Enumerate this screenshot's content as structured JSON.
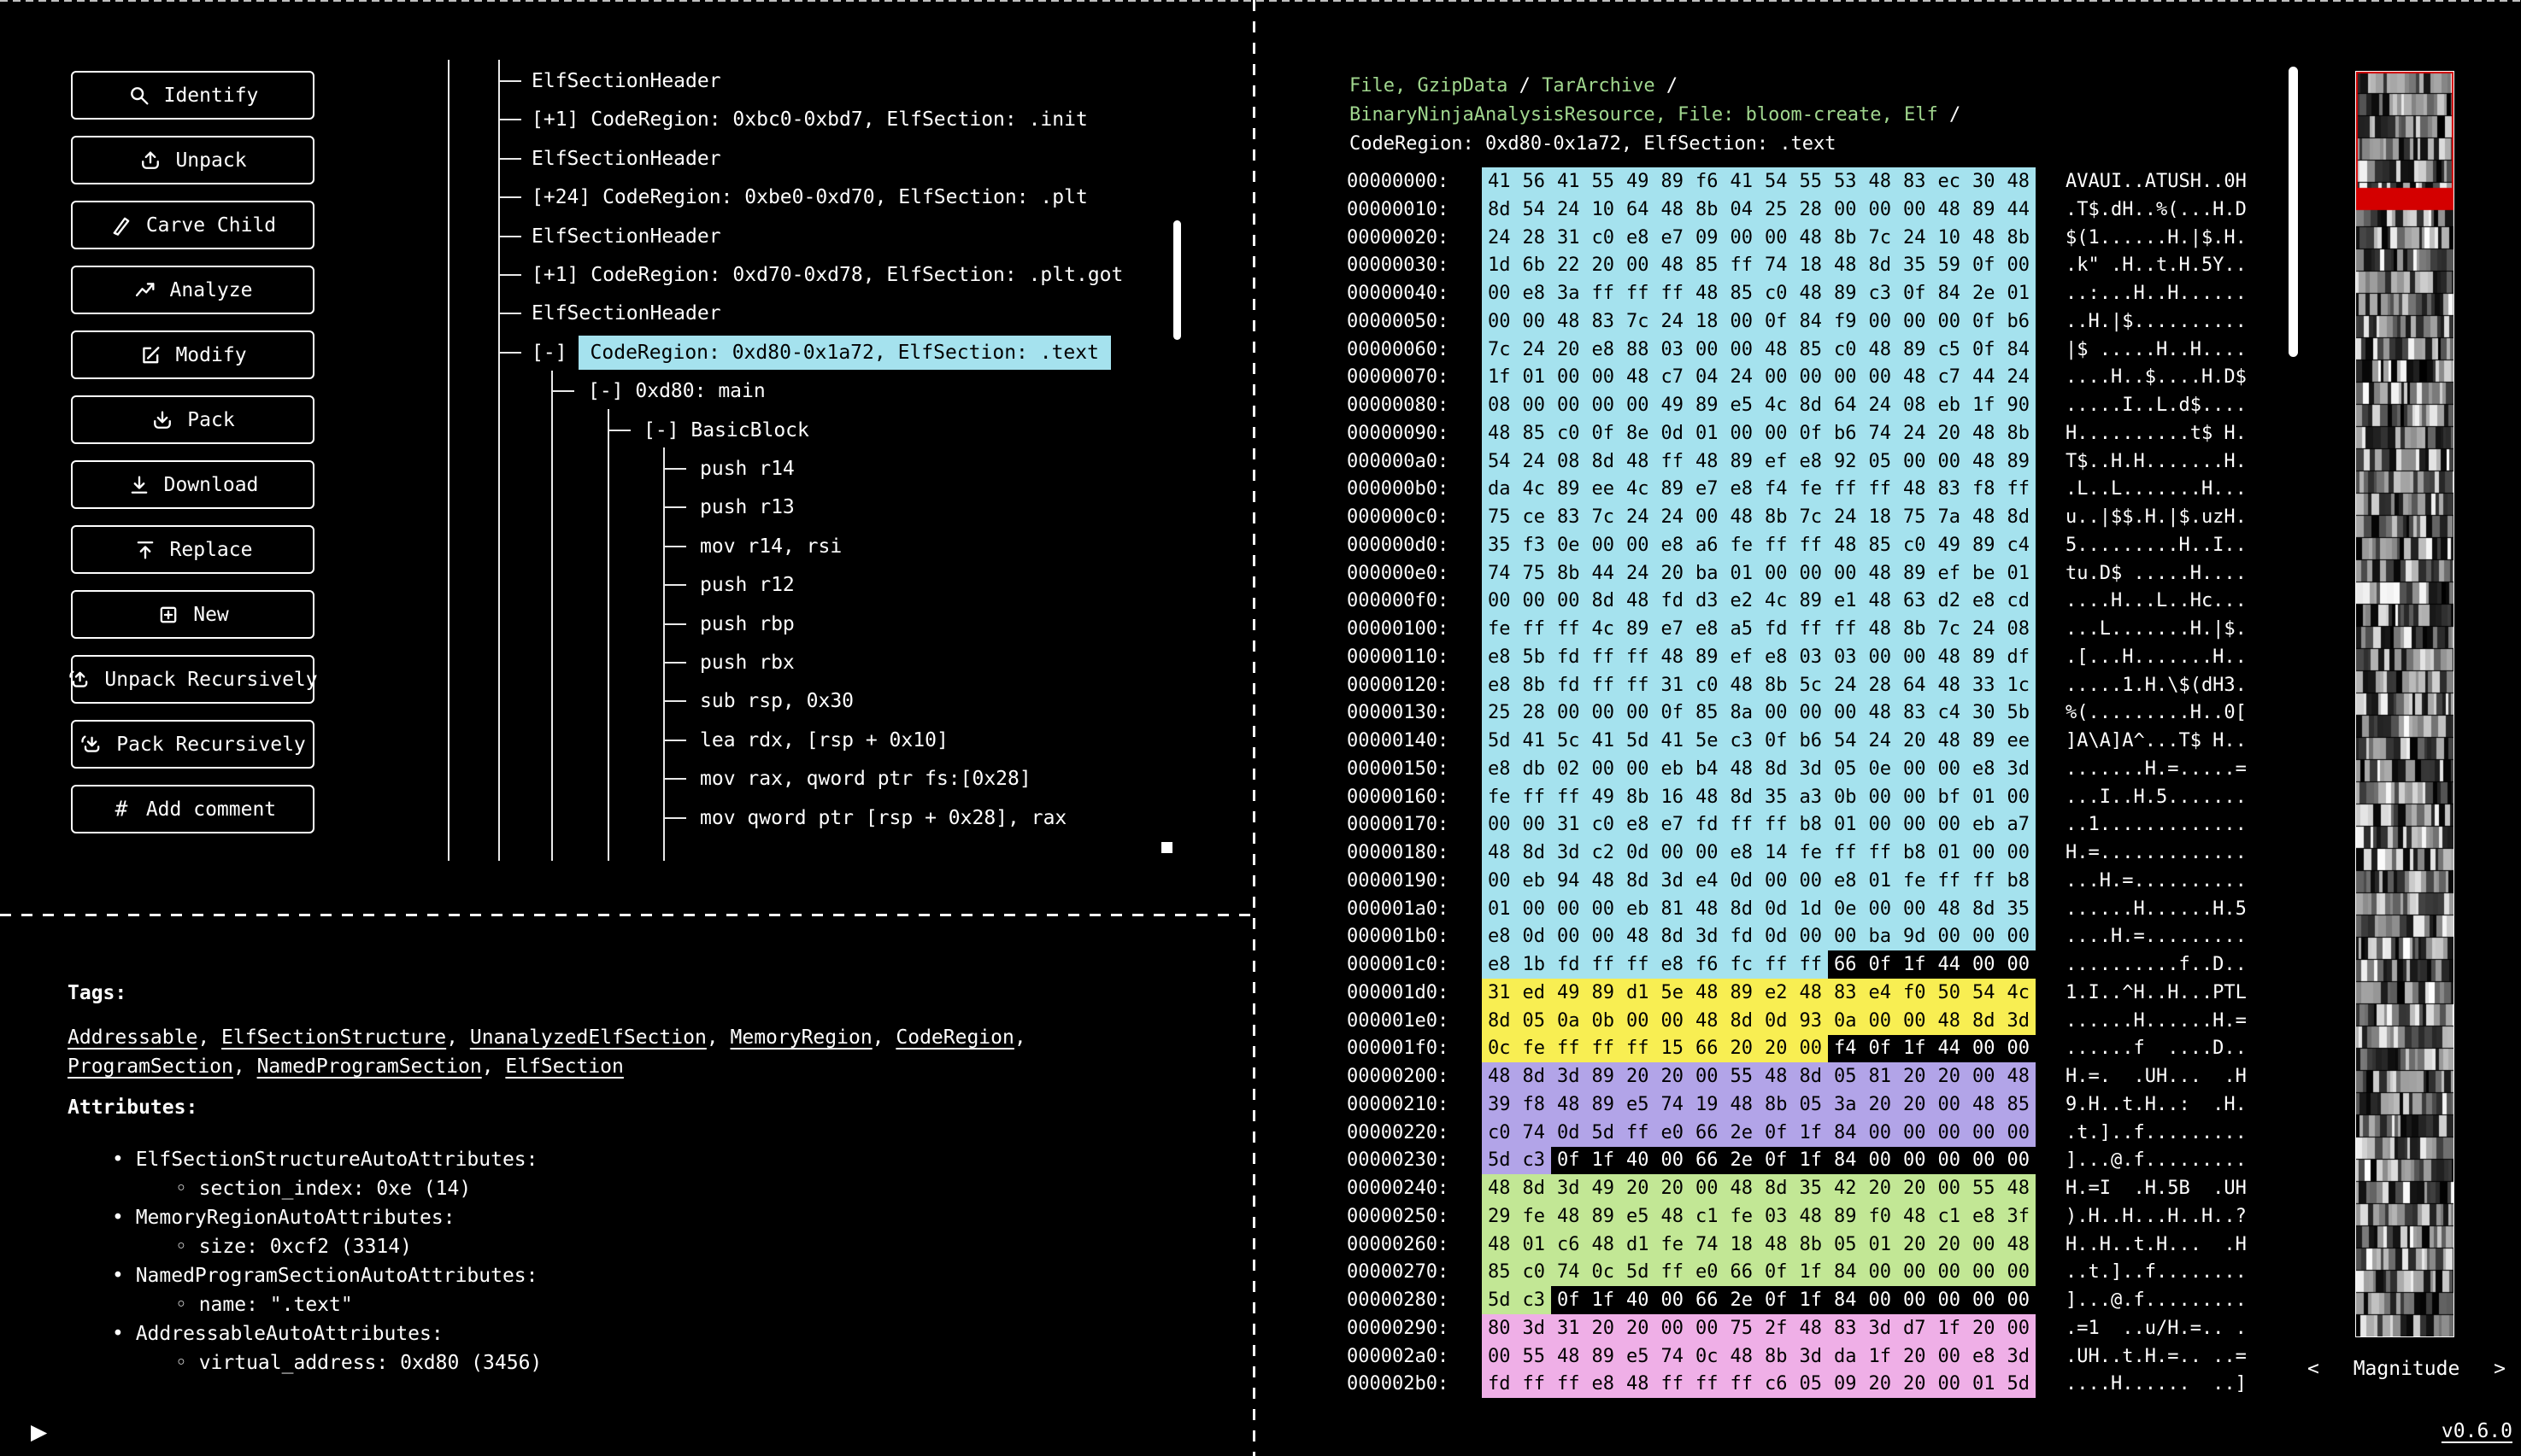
{
  "app": {
    "version_label": "v0.6.0",
    "play_glyph": "▶"
  },
  "colors": {
    "selection": "#a5e2ee",
    "hex_cyan": "#a5e2ee",
    "hex_yellow": "#f8ee52",
    "hex_purple": "#b2a4e8",
    "hex_green": "#c2e795",
    "hex_pink": "#efafe7",
    "minimap_red": "#d40000",
    "breadcrumb_green": "#a0d68e"
  },
  "toolbar": {
    "buttons": [
      {
        "id": "identify",
        "label": "Identify",
        "icon": "magnifier-icon"
      },
      {
        "id": "unpack",
        "label": "Unpack",
        "icon": "unpack-icon"
      },
      {
        "id": "carve-child",
        "label": "Carve Child",
        "icon": "carve-knife-icon"
      },
      {
        "id": "analyze",
        "label": "Analyze",
        "icon": "trend-arrow-icon"
      },
      {
        "id": "modify",
        "label": "Modify",
        "icon": "pen-square-icon"
      },
      {
        "id": "pack",
        "label": "Pack",
        "icon": "pack-icon"
      },
      {
        "id": "download",
        "label": "Download",
        "icon": "download-icon"
      },
      {
        "id": "replace",
        "label": "Replace",
        "icon": "replace-icon"
      },
      {
        "id": "new",
        "label": "New",
        "icon": "file-plus-icon"
      },
      {
        "id": "unpack-recursively",
        "label": "Unpack Recursively",
        "icon": "unpack-recursive-icon"
      },
      {
        "id": "pack-recursively",
        "label": "Pack Recursively",
        "icon": "pack-recursive-icon"
      },
      {
        "id": "add-comment",
        "label": "Add comment",
        "icon": "hash-icon"
      }
    ]
  },
  "tree": {
    "rows": [
      {
        "level": 0,
        "text": "ElfSectionHeader"
      },
      {
        "level": 0,
        "text": "[+1] CodeRegion: 0xbc0-0xbd7, ElfSection: .init"
      },
      {
        "level": 0,
        "text": "ElfSectionHeader"
      },
      {
        "level": 0,
        "text": "[+24] CodeRegion: 0xbe0-0xd70, ElfSection: .plt"
      },
      {
        "level": 0,
        "text": "ElfSectionHeader"
      },
      {
        "level": 0,
        "text": "[+1] CodeRegion: 0xd70-0xd78, ElfSection: .plt.got"
      },
      {
        "level": 0,
        "text": "ElfSectionHeader"
      },
      {
        "level": 0,
        "prefix": "[-]",
        "text": "CodeRegion: 0xd80-0x1a72, ElfSection: .text",
        "selected": true
      },
      {
        "level": 1,
        "text": "[-] 0xd80: main"
      },
      {
        "level": 2,
        "text": "[-] BasicBlock"
      },
      {
        "level": 3,
        "text": "push r14"
      },
      {
        "level": 3,
        "text": "push r13"
      },
      {
        "level": 3,
        "text": "mov r14, rsi"
      },
      {
        "level": 3,
        "text": "push r12"
      },
      {
        "level": 3,
        "text": "push rbp"
      },
      {
        "level": 3,
        "text": "push rbx"
      },
      {
        "level": 3,
        "text": "sub rsp, 0x30"
      },
      {
        "level": 3,
        "text": "lea rdx, [rsp + 0x10]"
      },
      {
        "level": 3,
        "text": "mov rax, qword ptr fs:[0x28]"
      },
      {
        "level": 3,
        "text": "mov qword ptr [rsp + 0x28], rax"
      }
    ]
  },
  "breadcrumb": {
    "lines": [
      [
        {
          "t": "File, GzipData",
          "c": "green"
        },
        {
          "t": " / ",
          "c": "white"
        },
        {
          "t": "TarArchive",
          "c": "green"
        },
        {
          "t": " /",
          "c": "white"
        }
      ],
      [
        {
          "t": "BinaryNinjaAnalysisResource, File: bloom-create, Elf",
          "c": "green"
        },
        {
          "t": " /",
          "c": "white"
        }
      ],
      [
        {
          "t": "CodeRegion: 0xd80-0x1a72, ElfSection: .text",
          "c": "white"
        }
      ]
    ]
  },
  "hexdump": {
    "rows": [
      {
        "a": "00000000:",
        "b": "41 56 41 55 49 89 f6 41 54 55 53 48 83 ec 30 48",
        "s": [
          [
            "cyan",
            16
          ]
        ]
      },
      {
        "a": "00000010:",
        "b": "8d 54 24 10 64 48 8b 04 25 28 00 00 00 48 89 44",
        "s": [
          [
            "cyan",
            16
          ]
        ]
      },
      {
        "a": "00000020:",
        "b": "24 28 31 c0 e8 e7 09 00 00 48 8b 7c 24 10 48 8b",
        "s": [
          [
            "cyan",
            16
          ]
        ]
      },
      {
        "a": "00000030:",
        "b": "1d 6b 22 20 00 48 85 ff 74 18 48 8d 35 59 0f 00",
        "s": [
          [
            "cyan",
            16
          ]
        ]
      },
      {
        "a": "00000040:",
        "b": "00 e8 3a ff ff ff 48 85 c0 48 89 c3 0f 84 2e 01",
        "s": [
          [
            "cyan",
            16
          ]
        ]
      },
      {
        "a": "00000050:",
        "b": "00 00 48 83 7c 24 18 00 0f 84 f9 00 00 00 0f b6",
        "s": [
          [
            "cyan",
            16
          ]
        ]
      },
      {
        "a": "00000060:",
        "b": "7c 24 20 e8 88 03 00 00 48 85 c0 48 89 c5 0f 84",
        "s": [
          [
            "cyan",
            16
          ]
        ]
      },
      {
        "a": "00000070:",
        "b": "1f 01 00 00 48 c7 04 24 00 00 00 00 48 c7 44 24",
        "s": [
          [
            "cyan",
            16
          ]
        ]
      },
      {
        "a": "00000080:",
        "b": "08 00 00 00 00 49 89 e5 4c 8d 64 24 08 eb 1f 90",
        "s": [
          [
            "cyan",
            16
          ]
        ]
      },
      {
        "a": "00000090:",
        "b": "48 85 c0 0f 8e 0d 01 00 00 0f b6 74 24 20 48 8b",
        "s": [
          [
            "cyan",
            16
          ]
        ]
      },
      {
        "a": "000000a0:",
        "b": "54 24 08 8d 48 ff 48 89 ef e8 92 05 00 00 48 89",
        "s": [
          [
            "cyan",
            16
          ]
        ]
      },
      {
        "a": "000000b0:",
        "b": "da 4c 89 ee 4c 89 e7 e8 f4 fe ff ff 48 83 f8 ff",
        "s": [
          [
            "cyan",
            16
          ]
        ]
      },
      {
        "a": "000000c0:",
        "b": "75 ce 83 7c 24 24 00 48 8b 7c 24 18 75 7a 48 8d",
        "s": [
          [
            "cyan",
            16
          ]
        ]
      },
      {
        "a": "000000d0:",
        "b": "35 f3 0e 00 00 e8 a6 fe ff ff 48 85 c0 49 89 c4",
        "s": [
          [
            "cyan",
            16
          ]
        ]
      },
      {
        "a": "000000e0:",
        "b": "74 75 8b 44 24 20 ba 01 00 00 00 48 89 ef be 01",
        "s": [
          [
            "cyan",
            16
          ]
        ]
      },
      {
        "a": "000000f0:",
        "b": "00 00 00 8d 48 fd d3 e2 4c 89 e1 48 63 d2 e8 cd",
        "s": [
          [
            "cyan",
            16
          ]
        ]
      },
      {
        "a": "00000100:",
        "b": "fe ff ff 4c 89 e7 e8 a5 fd ff ff 48 8b 7c 24 08",
        "s": [
          [
            "cyan",
            16
          ]
        ]
      },
      {
        "a": "00000110:",
        "b": "e8 5b fd ff ff 48 89 ef e8 03 03 00 00 48 89 df",
        "s": [
          [
            "cyan",
            16
          ]
        ]
      },
      {
        "a": "00000120:",
        "b": "e8 8b fd ff ff 31 c0 48 8b 5c 24 28 64 48 33 1c",
        "s": [
          [
            "cyan",
            16
          ]
        ]
      },
      {
        "a": "00000130:",
        "b": "25 28 00 00 00 0f 85 8a 00 00 00 48 83 c4 30 5b",
        "s": [
          [
            "cyan",
            16
          ]
        ]
      },
      {
        "a": "00000140:",
        "b": "5d 41 5c 41 5d 41 5e c3 0f b6 54 24 20 48 89 ee",
        "s": [
          [
            "cyan",
            16
          ]
        ]
      },
      {
        "a": "00000150:",
        "b": "e8 db 02 00 00 eb b4 48 8d 3d 05 0e 00 00 e8 3d",
        "s": [
          [
            "cyan",
            16
          ]
        ]
      },
      {
        "a": "00000160:",
        "b": "fe ff ff 49 8b 16 48 8d 35 a3 0b 00 00 bf 01 00",
        "s": [
          [
            "cyan",
            16
          ]
        ]
      },
      {
        "a": "00000170:",
        "b": "00 00 31 c0 e8 e7 fd ff ff b8 01 00 00 00 eb a7",
        "s": [
          [
            "cyan",
            16
          ]
        ]
      },
      {
        "a": "00000180:",
        "b": "48 8d 3d c2 0d 00 00 e8 14 fe ff ff b8 01 00 00",
        "s": [
          [
            "cyan",
            16
          ]
        ]
      },
      {
        "a": "00000190:",
        "b": "00 eb 94 48 8d 3d e4 0d 00 00 e8 01 fe ff ff b8",
        "s": [
          [
            "cyan",
            16
          ]
        ]
      },
      {
        "a": "000001a0:",
        "b": "01 00 00 00 eb 81 48 8d 0d 1d 0e 00 00 48 8d 35",
        "s": [
          [
            "cyan",
            16
          ]
        ]
      },
      {
        "a": "000001b0:",
        "b": "e8 0d 00 00 48 8d 3d fd 0d 00 00 ba 9d 00 00 00",
        "s": [
          [
            "cyan",
            16
          ]
        ]
      },
      {
        "a": "000001c0:",
        "b": "e8 1b fd ff ff e8 f6 fc ff ff 66 0f 1f 44 00 00",
        "s": [
          [
            "cyan",
            10
          ],
          [
            "none",
            6
          ]
        ]
      },
      {
        "a": "000001d0:",
        "b": "31 ed 49 89 d1 5e 48 89 e2 48 83 e4 f0 50 54 4c",
        "s": [
          [
            "yellow",
            16
          ]
        ]
      },
      {
        "a": "000001e0:",
        "b": "8d 05 0a 0b 00 00 48 8d 0d 93 0a 00 00 48 8d 3d",
        "s": [
          [
            "yellow",
            16
          ]
        ]
      },
      {
        "a": "000001f0:",
        "b": "0c fe ff ff ff 15 66 20 20 00 f4 0f 1f 44 00 00",
        "s": [
          [
            "yellow",
            10
          ],
          [
            "none",
            6
          ]
        ]
      },
      {
        "a": "00000200:",
        "b": "48 8d 3d 89 20 20 00 55 48 8d 05 81 20 20 00 48",
        "s": [
          [
            "purple",
            16
          ]
        ]
      },
      {
        "a": "00000210:",
        "b": "39 f8 48 89 e5 74 19 48 8b 05 3a 20 20 00 48 85",
        "s": [
          [
            "purple",
            16
          ]
        ]
      },
      {
        "a": "00000220:",
        "b": "c0 74 0d 5d ff e0 66 2e 0f 1f 84 00 00 00 00 00",
        "s": [
          [
            "purple",
            16
          ]
        ]
      },
      {
        "a": "00000230:",
        "b": "5d c3 0f 1f 40 00 66 2e 0f 1f 84 00 00 00 00 00",
        "s": [
          [
            "purple",
            2
          ],
          [
            "none",
            14
          ]
        ]
      },
      {
        "a": "00000240:",
        "b": "48 8d 3d 49 20 20 00 48 8d 35 42 20 20 00 55 48",
        "s": [
          [
            "green",
            16
          ]
        ]
      },
      {
        "a": "00000250:",
        "b": "29 fe 48 89 e5 48 c1 fe 03 48 89 f0 48 c1 e8 3f",
        "s": [
          [
            "green",
            16
          ]
        ]
      },
      {
        "a": "00000260:",
        "b": "48 01 c6 48 d1 fe 74 18 48 8b 05 01 20 20 00 48",
        "s": [
          [
            "green",
            16
          ]
        ]
      },
      {
        "a": "00000270:",
        "b": "85 c0 74 0c 5d ff e0 66 0f 1f 84 00 00 00 00 00",
        "s": [
          [
            "green",
            16
          ]
        ]
      },
      {
        "a": "00000280:",
        "b": "5d c3 0f 1f 40 00 66 2e 0f 1f 84 00 00 00 00 00",
        "s": [
          [
            "green",
            2
          ],
          [
            "none",
            14
          ]
        ]
      },
      {
        "a": "00000290:",
        "b": "80 3d 31 20 20 00 00 75 2f 48 83 3d d7 1f 20 00",
        "s": [
          [
            "pink",
            16
          ]
        ]
      },
      {
        "a": "000002a0:",
        "b": "00 55 48 89 e5 74 0c 48 8b 3d da 1f 20 00 e8 3d",
        "s": [
          [
            "pink",
            16
          ]
        ]
      },
      {
        "a": "000002b0:",
        "b": "fd ff ff e8 48 ff ff ff c6 05 09 20 20 00 01 5d",
        "s": [
          [
            "pink",
            16
          ]
        ]
      }
    ]
  },
  "tags": {
    "heading": "Tags:",
    "items": [
      "Addressable",
      "ElfSectionStructure",
      "UnanalyzedElfSection",
      "MemoryRegion",
      "CodeRegion",
      "ProgramSection",
      "NamedProgramSection",
      "ElfSection"
    ]
  },
  "attributes": {
    "heading": "Attributes:",
    "rows": [
      {
        "d": 1,
        "t": "ElfSectionStructureAutoAttributes:"
      },
      {
        "d": 2,
        "t": "section_index: 0xe (14)"
      },
      {
        "d": 1,
        "t": "MemoryRegionAutoAttributes:"
      },
      {
        "d": 2,
        "t": "size: 0xcf2 (3314)"
      },
      {
        "d": 1,
        "t": "NamedProgramSectionAutoAttributes:"
      },
      {
        "d": 2,
        "t": "name: \".text\""
      },
      {
        "d": 1,
        "t": "AddressableAutoAttributes:"
      },
      {
        "d": 2,
        "t": "virtual_address: 0xd80 (3456)"
      }
    ]
  },
  "minimap": {
    "label": "Magnitude",
    "prev": "<",
    "next": ">"
  }
}
